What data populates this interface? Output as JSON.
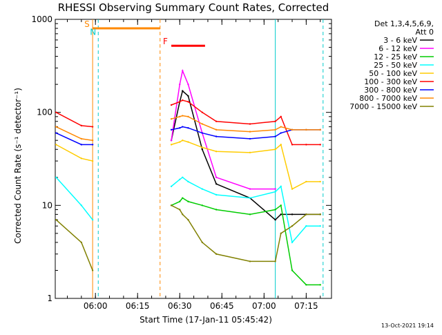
{
  "chart_data": {
    "type": "line",
    "title": "RHESSI Observing Summary Count Rates, Corrected",
    "xlabel": "Start Time (17-Jan-11 05:45:42)",
    "ylabel": "Corrected Count Rate (s⁻¹ detector⁻¹)",
    "yscale": "log",
    "ylim": [
      1,
      1000
    ],
    "xlim": [
      "05:45:42",
      "07:24:00"
    ],
    "x_tick_labels": [
      "06:00",
      "06:15",
      "06:30",
      "06:45",
      "07:00",
      "07:15"
    ],
    "y_tick_labels": [
      "1",
      "10",
      "100",
      "1000"
    ],
    "legend": {
      "header": [
        "Det 1,3,4,5,6,9,",
        "Att 0"
      ],
      "position": "right"
    },
    "series": [
      {
        "name": "3 - 6 keV",
        "color": "#000000",
        "x": [
          "05:46",
          "05:55",
          "05:59",
          "06:23",
          "06:27",
          "06:30",
          "06:31",
          "06:33",
          "06:38",
          "06:43",
          "06:55",
          "07:04",
          "07:06",
          "07:10",
          "07:15",
          "07:20"
        ],
        "y": [
          null,
          null,
          null,
          null,
          50,
          130,
          170,
          150,
          40,
          17,
          12,
          7,
          8,
          8,
          8,
          8
        ]
      },
      {
        "name": "6 - 12 keV",
        "color": "#ff00ff",
        "x": [
          "05:46",
          "05:55",
          "05:59",
          "06:23",
          "06:27",
          "06:30",
          "06:31",
          "06:33",
          "06:38",
          "06:43",
          "06:55",
          "07:04",
          "07:06",
          "07:10",
          "07:15",
          "07:20"
        ],
        "y": [
          null,
          null,
          null,
          null,
          50,
          200,
          280,
          200,
          60,
          20,
          15,
          15,
          null,
          null,
          null,
          null
        ]
      },
      {
        "name": "12 - 25 keV",
        "color": "#00cc00",
        "x": [
          "05:46",
          "05:55",
          "05:59",
          "06:23",
          "06:27",
          "06:30",
          "06:31",
          "06:33",
          "06:38",
          "06:43",
          "06:55",
          "07:04",
          "07:06",
          "07:10",
          "07:15",
          "07:20"
        ],
        "y": [
          null,
          null,
          null,
          null,
          10,
          11,
          12,
          11,
          10,
          9,
          8,
          9,
          10,
          2,
          1.4,
          1.4
        ]
      },
      {
        "name": "25 - 50 keV",
        "color": "#00ffff",
        "x": [
          "05:46",
          "05:55",
          "05:59",
          "06:23",
          "06:27",
          "06:30",
          "06:31",
          "06:33",
          "06:38",
          "06:43",
          "06:55",
          "07:04",
          "07:06",
          "07:10",
          "07:15",
          "07:20"
        ],
        "y": [
          20,
          10,
          7,
          null,
          16,
          19,
          20,
          18,
          15,
          13,
          12,
          14,
          16,
          4,
          6,
          6
        ]
      },
      {
        "name": "50 - 100 keV",
        "color": "#ffcc00",
        "x": [
          "05:46",
          "05:55",
          "05:59",
          "06:23",
          "06:27",
          "06:30",
          "06:31",
          "06:33",
          "06:38",
          "06:43",
          "06:55",
          "07:04",
          "07:06",
          "07:10",
          "07:15",
          "07:20"
        ],
        "y": [
          45,
          32,
          30,
          null,
          45,
          48,
          50,
          48,
          42,
          38,
          37,
          40,
          45,
          15,
          18,
          18
        ]
      },
      {
        "name": "100 - 300 keV",
        "color": "#ff0000",
        "x": [
          "05:46",
          "05:55",
          "05:59",
          "06:23",
          "06:27",
          "06:30",
          "06:31",
          "06:33",
          "06:38",
          "06:43",
          "06:55",
          "07:04",
          "07:06",
          "07:10",
          "07:15",
          "07:20"
        ],
        "y": [
          100,
          72,
          70,
          null,
          120,
          130,
          135,
          130,
          100,
          80,
          75,
          80,
          90,
          45,
          45,
          45
        ]
      },
      {
        "name": "300 - 800 keV",
        "color": "#0000ff",
        "x": [
          "05:46",
          "05:55",
          "05:59",
          "06:23",
          "06:27",
          "06:30",
          "06:31",
          "06:33",
          "06:38",
          "06:43",
          "06:55",
          "07:04",
          "07:06",
          "07:10",
          "07:15",
          "07:20"
        ],
        "y": [
          60,
          45,
          45,
          null,
          65,
          68,
          70,
          68,
          60,
          55,
          52,
          55,
          60,
          65,
          65,
          65
        ]
      },
      {
        "name": "800 - 7000 keV",
        "color": "#ff8800",
        "x": [
          "05:46",
          "05:55",
          "05:59",
          "06:23",
          "06:27",
          "06:30",
          "06:31",
          "06:33",
          "06:38",
          "06:43",
          "06:55",
          "07:04",
          "07:06",
          "07:10",
          "07:15",
          "07:20"
        ],
        "y": [
          70,
          52,
          50,
          null,
          85,
          90,
          92,
          90,
          75,
          65,
          62,
          65,
          70,
          65,
          65,
          65
        ]
      },
      {
        "name": "7000 - 15000 keV",
        "color": "#808000",
        "x": [
          "05:46",
          "05:55",
          "05:59",
          "06:23",
          "06:27",
          "06:30",
          "06:31",
          "06:33",
          "06:38",
          "06:43",
          "06:55",
          "07:04",
          "07:06",
          "07:10",
          "07:15",
          "07:20"
        ],
        "y": [
          7,
          4,
          2,
          null,
          10,
          9,
          8,
          7,
          4,
          3,
          2.5,
          2.5,
          5,
          6,
          8,
          8
        ]
      }
    ],
    "annotations": [
      {
        "label": "S",
        "color": "#ff8800",
        "start": "05:59",
        "end": "06:23",
        "level": 800,
        "bar": true
      },
      {
        "label": "N",
        "color": "#00cccc",
        "start": "06:01",
        "end": "07:04",
        "level": 660,
        "bar": false
      },
      {
        "label": "F",
        "color": "#ff0000",
        "start": "06:27",
        "end": "06:39",
        "level": 520,
        "bar": true
      }
    ],
    "saa_lines": [
      {
        "time": "06:23",
        "color": "#ff8800",
        "style": "dashed"
      },
      {
        "time": "06:01",
        "color": "#00cccc",
        "style": "dashed"
      },
      {
        "time": "05:59",
        "color": "#ff8800",
        "style": "solid"
      },
      {
        "time": "07:04",
        "color": "#00cccc",
        "style": "solid"
      },
      {
        "time": "07:21",
        "color": "#00cccc",
        "style": "dashed"
      }
    ],
    "footer_date": "13-Oct-2021 19:14"
  }
}
